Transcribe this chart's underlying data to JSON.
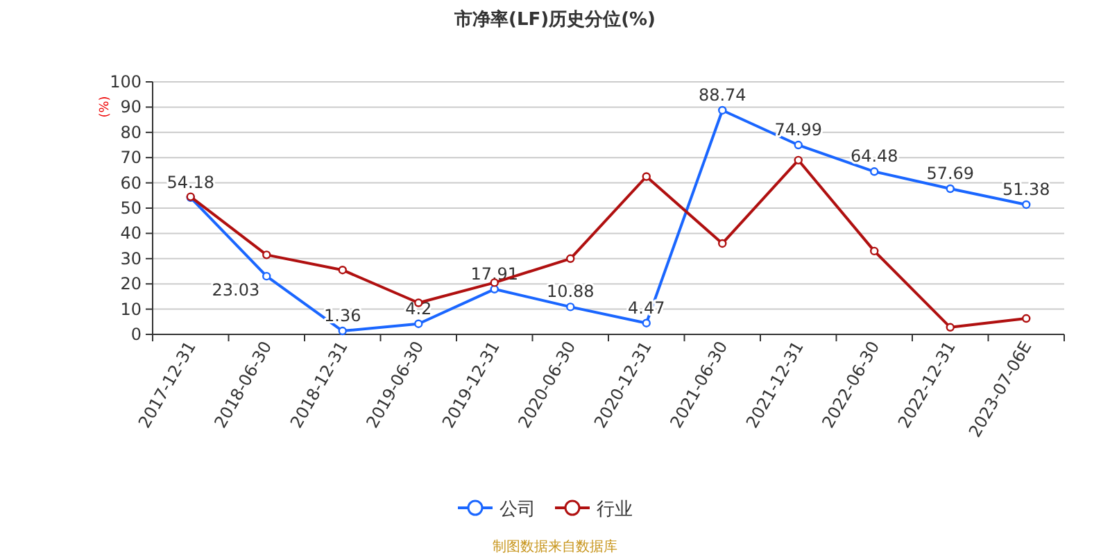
{
  "chart_data": {
    "type": "line",
    "title": "市净率(LF)历史分位(%)",
    "ylabel": "(%)",
    "categories": [
      "2017-12-31",
      "2018-06-30",
      "2018-12-31",
      "2019-06-30",
      "2019-12-31",
      "2020-06-30",
      "2020-12-31",
      "2021-06-30",
      "2021-12-31",
      "2022-06-30",
      "2022-12-31",
      "2023-07-06E"
    ],
    "series": [
      {
        "name": "公司",
        "color": "#1a66ff",
        "values": [
          54.18,
          23.03,
          1.36,
          4.2,
          17.91,
          10.88,
          4.47,
          88.74,
          74.99,
          64.48,
          57.69,
          51.38
        ],
        "value_labels": [
          "54.18",
          "23.03",
          "1.36",
          "4.2",
          "17.91",
          "10.88",
          "4.47",
          "88.74",
          "74.99",
          "64.48",
          "57.69",
          "51.38"
        ]
      },
      {
        "name": "行业",
        "color": "#b01010",
        "values": [
          54.5,
          31.5,
          25.5,
          12.5,
          20.5,
          30,
          62.5,
          36,
          69,
          33,
          2.8,
          6.3
        ]
      }
    ],
    "ylim": [
      0,
      100
    ],
    "yticks": [
      0,
      10,
      20,
      30,
      40,
      50,
      60,
      70,
      80,
      90,
      100
    ],
    "grid": "y",
    "legend": "bottom",
    "marker": "circle",
    "line_style": "solid",
    "annotations": [
      "制图数据来自数据库"
    ]
  }
}
